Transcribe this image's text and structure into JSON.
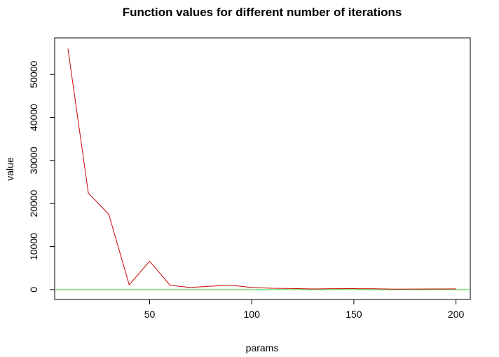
{
  "chart_data": {
    "type": "line",
    "title": "Function values for different number of iterations",
    "xlabel": "params",
    "ylabel": "value",
    "xlim": [
      3.5,
      207
    ],
    "ylim": [
      -2300,
      58500
    ],
    "x_ticks": [
      50,
      100,
      150,
      200
    ],
    "y_ticks": [
      0,
      10000,
      20000,
      30000,
      40000,
      50000
    ],
    "grid": false,
    "series": [
      {
        "color": "#cc0000",
        "x": [
          10,
          20,
          30,
          40,
          50,
          60,
          70,
          80,
          90,
          100,
          110,
          120,
          130,
          140,
          150,
          160,
          170,
          180,
          190,
          200
        ],
        "y": [
          56000,
          22400,
          17500,
          1100,
          6600,
          1000,
          500,
          800,
          1000,
          500,
          300,
          250,
          150,
          200,
          220,
          180,
          100,
          120,
          150,
          160
        ]
      }
    ],
    "reference_lines": [
      {
        "orientation": "horizontal",
        "y": 0,
        "color": "#66dd66"
      }
    ]
  }
}
